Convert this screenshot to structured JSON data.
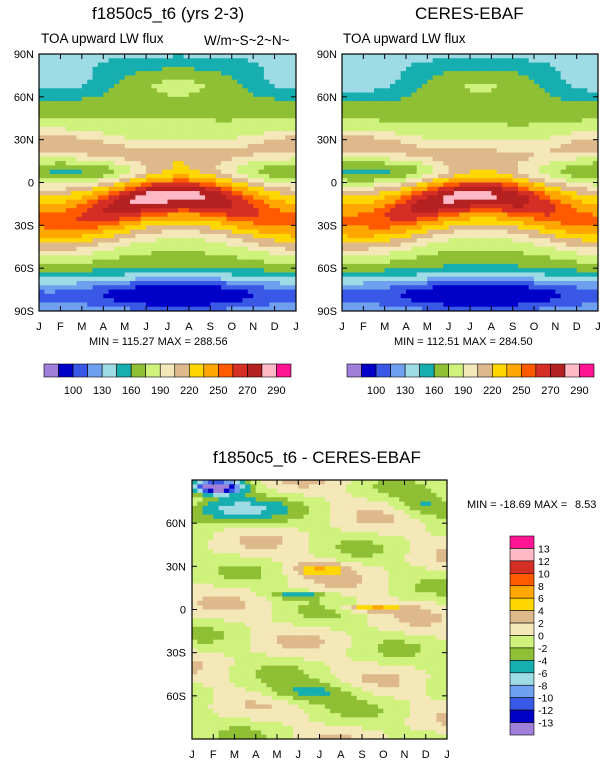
{
  "palette_main": [
    "#9f7fd9",
    "#0000c8",
    "#3a58e6",
    "#6fa0ef",
    "#9edbe4",
    "#16aeae",
    "#8fbf34",
    "#cef27c",
    "#f4e7b8",
    "#ddb98c",
    "#ffd700",
    "#ffa600",
    "#ff5a00",
    "#d52e25",
    "#b52020",
    "#fdb9c6",
    "#ff1493"
  ],
  "palette_diff": [
    "#9f7fd9",
    "#0000c8",
    "#3a58e6",
    "#6fa0ef",
    "#9edbe4",
    "#16aeae",
    "#8fbf34",
    "#cef27c",
    "#f4e7b8",
    "#ddb98c",
    "#ffd700",
    "#ffa600",
    "#ff5a00",
    "#d52e25",
    "#fdb9c6",
    "#ff1493"
  ],
  "panels": {
    "p1": {
      "title": "f1850c5_t6 (yrs 2-3)",
      "left_label": "TOA upward LW flux",
      "right_label": "W/m~S~2~N~",
      "minmax": "MIN = 115.27 MAX = 288.56"
    },
    "p2": {
      "title": "CERES-EBAF",
      "left_label": "TOA upward LW flux",
      "minmax": "MIN = 112.51 MAX = 284.50"
    },
    "p3": {
      "title": "f1850c5_t6 - CERES-EBAF",
      "minmax_prefix": "MIN = -18.69 MAX =",
      "minmax_max": "8.53"
    }
  },
  "chart_data": [
    {
      "type": "heatmap",
      "title": "f1850c5_t6 (yrs 2-3)",
      "subtitle_left": "TOA upward LW flux",
      "subtitle_right": "W/m~S~2~N~",
      "x": [
        "J",
        "F",
        "M",
        "A",
        "M",
        "J",
        "J",
        "A",
        "S",
        "O",
        "N",
        "D",
        "J"
      ],
      "y_ticks": [
        "90N",
        "60N",
        "30N",
        "0",
        "30S",
        "60S",
        "90S"
      ],
      "ylim": [
        -90,
        90
      ],
      "min": 115.27,
      "max": 288.56,
      "levels": [
        100,
        110,
        120,
        130,
        140,
        150,
        160,
        170,
        180,
        190,
        200,
        210,
        220,
        230,
        240,
        250,
        260,
        270,
        280,
        290
      ],
      "label_bar": [
        "100",
        "130",
        "160",
        "190",
        "220",
        "250",
        "270",
        "290"
      ]
    },
    {
      "type": "heatmap",
      "title": "CERES-EBAF",
      "subtitle_left": "TOA upward LW flux",
      "x": [
        "J",
        "F",
        "M",
        "A",
        "M",
        "J",
        "J",
        "A",
        "S",
        "O",
        "N",
        "D",
        "J"
      ],
      "y_ticks": [
        "90N",
        "60N",
        "30N",
        "0",
        "30S",
        "60S",
        "90S"
      ],
      "ylim": [
        -90,
        90
      ],
      "min": 112.51,
      "max": 284.5,
      "label_bar": [
        "100",
        "130",
        "160",
        "190",
        "220",
        "250",
        "270",
        "290"
      ]
    },
    {
      "type": "heatmap",
      "title": "f1850c5_t6 - CERES-EBAF",
      "x": [
        "J",
        "F",
        "M",
        "A",
        "M",
        "J",
        "J",
        "A",
        "S",
        "O",
        "N",
        "D",
        "J"
      ],
      "y_ticks": [
        "60N",
        "30N",
        "0",
        "30S",
        "60S"
      ],
      "ylim": [
        -90,
        90
      ],
      "min": -18.69,
      "max": 8.53,
      "label_bar": [
        "13",
        "12",
        "10",
        "8",
        "6",
        "4",
        "2",
        "0",
        "-2",
        "-4",
        "-6",
        "-8",
        "-10",
        "-12",
        "-13"
      ]
    }
  ]
}
